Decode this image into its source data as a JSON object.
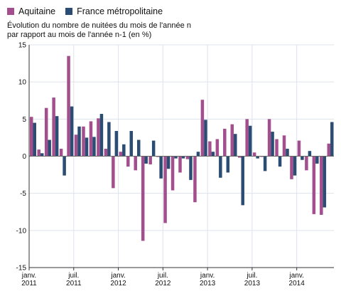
{
  "chart_data": {
    "type": "bar",
    "title": "",
    "subtitle_lines": [
      "Évolution du nombre de nuitées du mois de l'année n",
      "par rapport au mois de l'année n-1 (en %)"
    ],
    "xlabel": "",
    "ylabel": "",
    "ylim": [
      -15,
      15
    ],
    "yticks": [
      15,
      10,
      5,
      0,
      -5,
      -10,
      -15
    ],
    "grid": true,
    "legend_position": "top-left",
    "categories": [
      "2011-01",
      "2011-02",
      "2011-03",
      "2011-04",
      "2011-05",
      "2011-06",
      "2011-07",
      "2011-08",
      "2011-09",
      "2011-10",
      "2011-11",
      "2011-12",
      "2012-01",
      "2012-02",
      "2012-03",
      "2012-04",
      "2012-05",
      "2012-06",
      "2012-07",
      "2012-08",
      "2012-09",
      "2012-10",
      "2012-11",
      "2012-12",
      "2013-01",
      "2013-02",
      "2013-03",
      "2013-04",
      "2013-05",
      "2013-06",
      "2013-07",
      "2013-08",
      "2013-09",
      "2013-10",
      "2013-11",
      "2013-12",
      "2014-01",
      "2014-02",
      "2014-03",
      "2014-04",
      "2014-05"
    ],
    "xtick_labels": [
      {
        "index": 0,
        "lines": [
          "janv.",
          "2011"
        ]
      },
      {
        "index": 6,
        "lines": [
          "juil.",
          "2011"
        ]
      },
      {
        "index": 12,
        "lines": [
          "janv.",
          "2012"
        ]
      },
      {
        "index": 18,
        "lines": [
          "juil.",
          "2012"
        ]
      },
      {
        "index": 24,
        "lines": [
          "janv.",
          "2013"
        ]
      },
      {
        "index": 30,
        "lines": [
          "juil.",
          "2013"
        ]
      },
      {
        "index": 36,
        "lines": [
          "janv.",
          "2014"
        ]
      }
    ],
    "series": [
      {
        "name": "Aquitaine",
        "color": "#a34f8e",
        "values": [
          5.3,
          0.9,
          6.5,
          7.9,
          1.0,
          13.5,
          2.9,
          4.0,
          4.7,
          5.1,
          1.0,
          -4.3,
          0.6,
          -1.4,
          -1.9,
          -11.4,
          -1.1,
          -0.1,
          -9.0,
          -4.6,
          -2.2,
          -0.4,
          -6.2,
          7.6,
          2.0,
          2.3,
          3.7,
          4.3,
          -0.2,
          5.0,
          0.5,
          -0.1,
          5.0,
          2.3,
          2.8,
          -3.1,
          2.1,
          -1.9,
          -7.8,
          -7.9,
          1.7
        ]
      },
      {
        "name": "France métropolitaine",
        "color": "#2c4d73",
        "values": [
          4.5,
          0.4,
          2.2,
          5.4,
          -2.6,
          6.7,
          4.0,
          2.5,
          2.6,
          5.7,
          4.6,
          3.4,
          1.6,
          3.4,
          2.2,
          -1.0,
          2.1,
          -3.0,
          -1.7,
          -0.3,
          -0.3,
          -3.2,
          0.6,
          4.9,
          0.6,
          -2.9,
          -2.2,
          3.0,
          -6.6,
          4.1,
          -0.3,
          -2.0,
          3.3,
          -1.4,
          1.0,
          -2.6,
          -0.5,
          0.7,
          -1.0,
          -6.9,
          4.6
        ]
      }
    ]
  }
}
